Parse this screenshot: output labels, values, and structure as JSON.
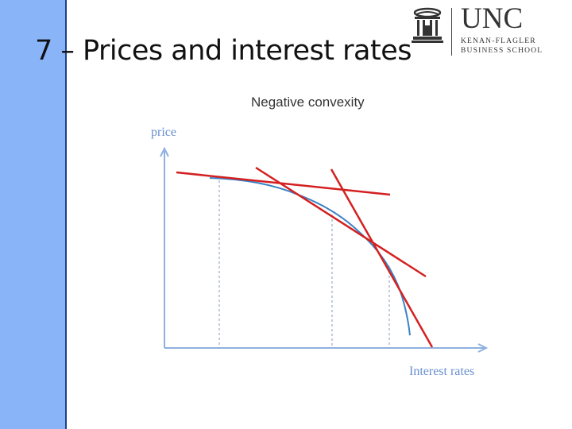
{
  "slide": {
    "title": "7 – Prices and interest rates"
  },
  "logo": {
    "wordmark": "UNC",
    "line1": "KENAN-FLAGLER",
    "line2": "BUSINESS SCHOOL"
  },
  "colors": {
    "left_bar": "#8ab4f8",
    "axis": "#8fb0e0",
    "curve": "#3b82c4",
    "tangents": "#d42020",
    "guides": "#9aa9c4"
  },
  "chart_data": {
    "type": "line",
    "title": "Negative convexity",
    "ylabel": "price",
    "xlabel": "Interest rates",
    "series": [
      {
        "values": "concave price–yield curve (price falls at an increasing rate as rates rise)"
      }
    ],
    "tangent_lines": 3,
    "guide_lines": 3,
    "grid": false
  }
}
